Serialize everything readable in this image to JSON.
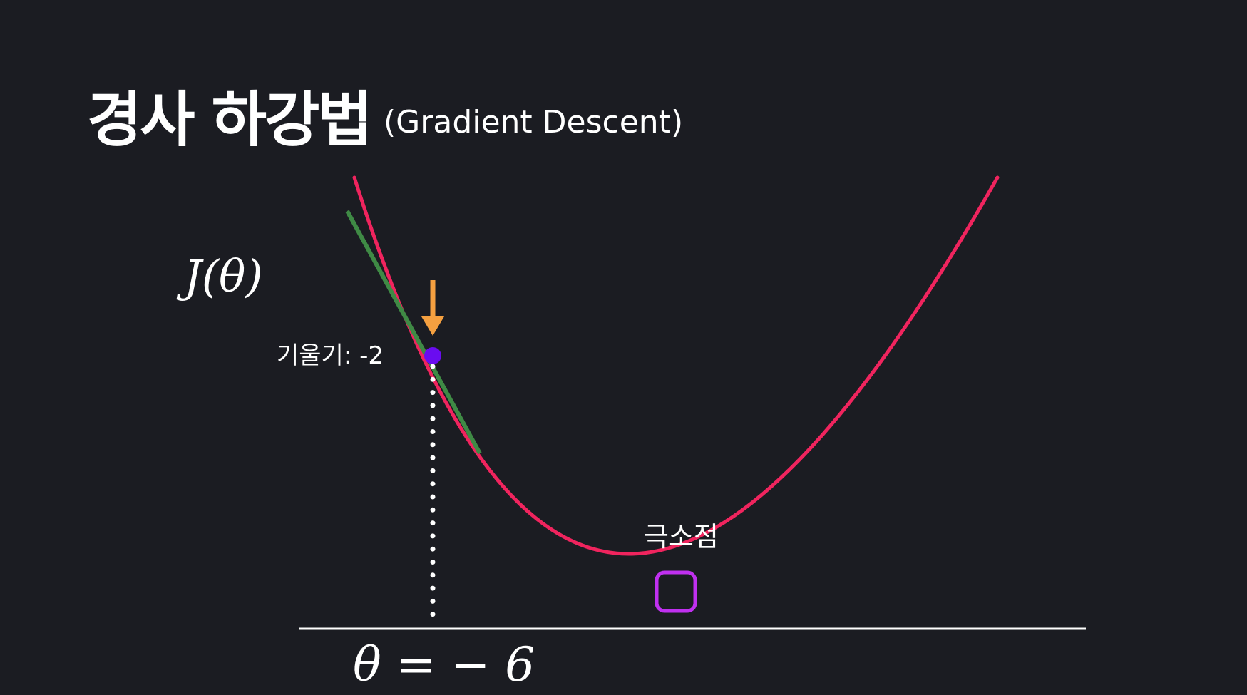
{
  "title": {
    "korean": "경사 하강법",
    "english": "(Gradient Descent)"
  },
  "labels": {
    "function": "J(θ)",
    "slope": "기울기: -2",
    "minimum": "극소점",
    "theta_value": "θ = − 6"
  },
  "colors": {
    "background": "#1b1c22",
    "curve": "#f0245e",
    "tangent": "#3f8a45",
    "point": "#6a0cf0",
    "arrow": "#f5a040",
    "minimum_box": "#c030f0",
    "axis": "#ffffff"
  }
}
